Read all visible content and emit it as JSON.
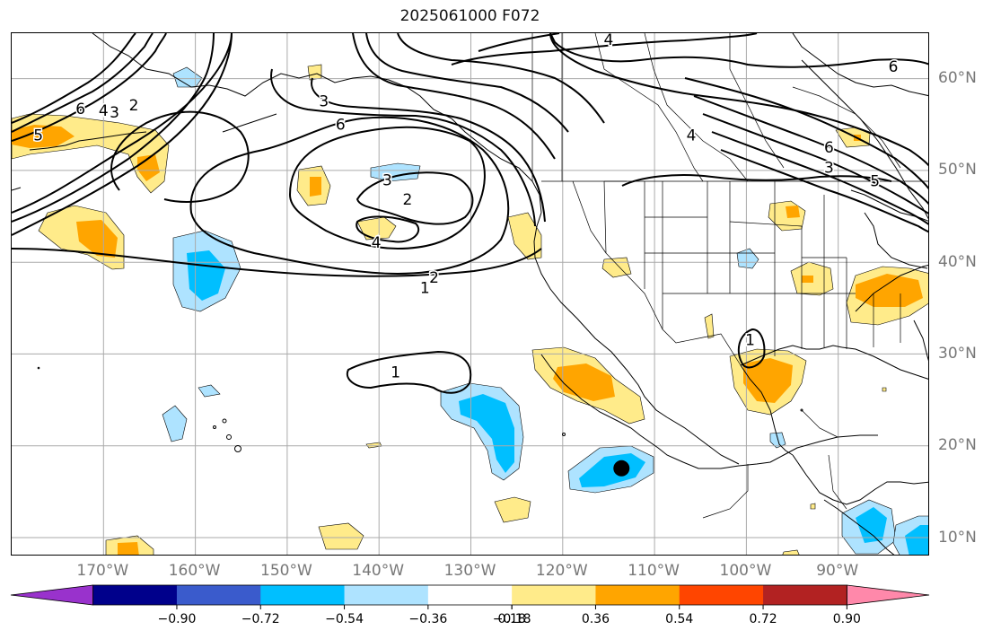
{
  "title": "2025061000 F072",
  "map": {
    "projection": "lat-lon",
    "extent": {
      "lon_min": -180,
      "lon_max": -80,
      "lat_min": 8,
      "lat_max": 65
    },
    "grid": true,
    "lat_labels": [
      {
        "lat": 60,
        "text": "60°N"
      },
      {
        "lat": 50,
        "text": "50°N"
      },
      {
        "lat": 40,
        "text": "40°N"
      },
      {
        "lat": 30,
        "text": "30°N"
      },
      {
        "lat": 20,
        "text": "20°N"
      },
      {
        "lat": 10,
        "text": "10°N"
      }
    ],
    "lon_labels": [
      {
        "lon": -170,
        "text": "170°W"
      },
      {
        "lon": -160,
        "text": "160°W"
      },
      {
        "lon": -150,
        "text": "150°W"
      },
      {
        "lon": -140,
        "text": "140°W"
      },
      {
        "lon": -130,
        "text": "130°W"
      },
      {
        "lon": -120,
        "text": "120°W"
      },
      {
        "lon": -110,
        "text": "110°W"
      },
      {
        "lon": -100,
        "text": "100°W"
      },
      {
        "lon": -90,
        "text": "90°W"
      }
    ],
    "contour_labels": [
      {
        "text": "4",
        "lon": -115.0,
        "lat": 64.2
      },
      {
        "text": "6",
        "lon": -84.0,
        "lat": 61.3
      },
      {
        "text": "6",
        "lon": -172.5,
        "lat": 56.7
      },
      {
        "text": "4",
        "lon": -170.0,
        "lat": 56.5
      },
      {
        "text": "3",
        "lon": -168.8,
        "lat": 56.3
      },
      {
        "text": "2",
        "lon": -166.7,
        "lat": 57.1
      },
      {
        "text": "5",
        "lon": -177.1,
        "lat": 53.8
      },
      {
        "text": "6",
        "lon": -144.2,
        "lat": 55.0
      },
      {
        "text": "3",
        "lon": -146.0,
        "lat": 57.5
      },
      {
        "text": "3",
        "lon": -139.1,
        "lat": 48.9
      },
      {
        "text": "2",
        "lon": -136.9,
        "lat": 46.8
      },
      {
        "text": "4",
        "lon": -140.3,
        "lat": 42.1
      },
      {
        "text": "2",
        "lon": -134.0,
        "lat": 38.3
      },
      {
        "text": "1",
        "lon": -135.0,
        "lat": 37.2
      },
      {
        "text": "1",
        "lon": -138.2,
        "lat": 28.0
      },
      {
        "text": "4",
        "lon": -106.0,
        "lat": 53.8
      },
      {
        "text": "6",
        "lon": -91.0,
        "lat": 52.5
      },
      {
        "text": "3",
        "lon": -91.0,
        "lat": 50.3
      },
      {
        "text": "5",
        "lon": -86.0,
        "lat": 48.8
      },
      {
        "text": "1",
        "lon": -99.6,
        "lat": 31.5
      }
    ],
    "marker": {
      "type": "storm-center",
      "lon": -113.6,
      "lat": 17.6,
      "color": "#000000"
    }
  },
  "colorbar": {
    "ticks": [
      "−0.90",
      "−0.72",
      "−0.54",
      "−0.36",
      "−0.18",
      "0.18",
      "0.36",
      "0.54",
      "0.72",
      "0.90"
    ],
    "colors": {
      "under": "#9932CC",
      "bins": [
        "#00008B",
        "#3A5BCC",
        "#00BFFF",
        "#AEE3FF",
        "#FFFFFF",
        "#FFEB8A",
        "#FFA500",
        "#FF4500",
        "#B22222"
      ],
      "over": "#FF88AA"
    }
  }
}
